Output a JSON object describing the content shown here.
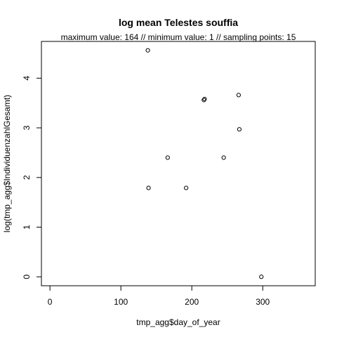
{
  "chart_data": {
    "type": "scatter",
    "title": "log mean Telestes souffia",
    "subtitle": "maximum value: 164  //  minimum value: 1  // sampling points: 15",
    "xlabel": "tmp_agg$day_of_year",
    "ylabel": "log(tmp_agg$IndividuenzahlGesamt)",
    "xlim": [
      -12,
      374
    ],
    "ylim": [
      -0.18,
      4.74
    ],
    "xticks": [
      0,
      100,
      200,
      300
    ],
    "yticks": [
      0,
      1,
      2,
      3,
      4
    ],
    "x_tick_labels": [
      "0",
      "100",
      "200",
      "300"
    ],
    "y_tick_labels": [
      "0",
      "1",
      "2",
      "3",
      "4"
    ],
    "grid": false,
    "legend": "none",
    "points": [
      {
        "x": 138,
        "y": 4.56
      },
      {
        "x": 139,
        "y": 1.79
      },
      {
        "x": 166,
        "y": 2.4
      },
      {
        "x": 192,
        "y": 1.79
      },
      {
        "x": 217,
        "y": 3.56
      },
      {
        "x": 218,
        "y": 3.58
      },
      {
        "x": 245,
        "y": 2.4
      },
      {
        "x": 266,
        "y": 3.66
      },
      {
        "x": 267,
        "y": 2.97
      },
      {
        "x": 298,
        "y": 0.0
      }
    ],
    "colors": {
      "marker": "#000000",
      "axis": "#000000",
      "background": "#ffffff"
    }
  }
}
